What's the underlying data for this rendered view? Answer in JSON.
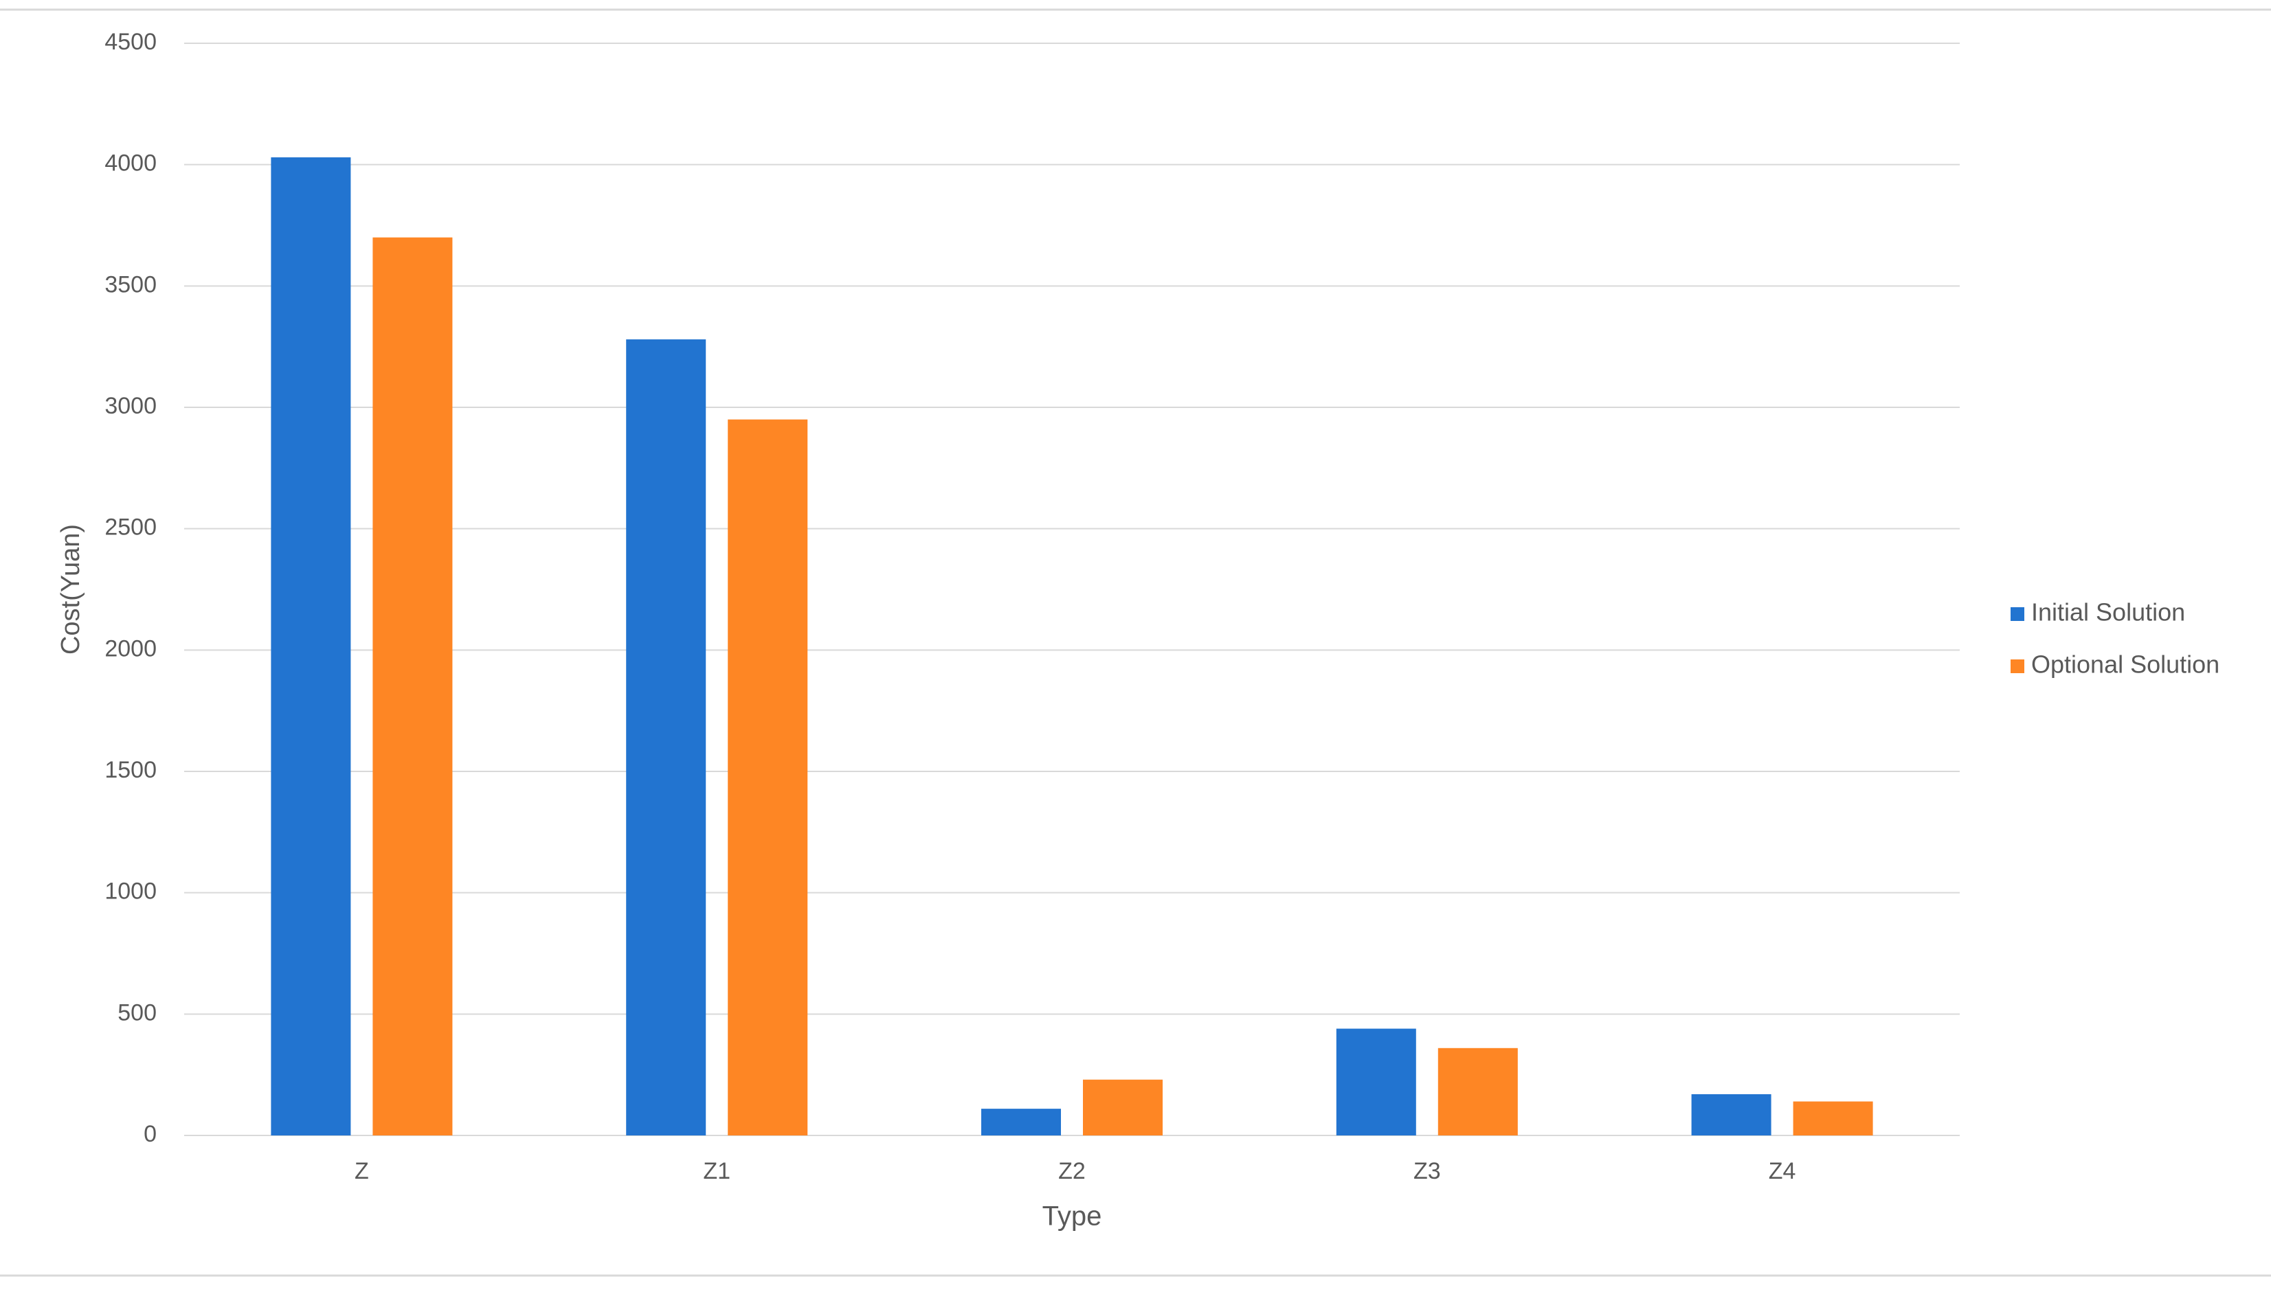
{
  "chart_data": {
    "type": "bar",
    "categories": [
      "Z",
      "Z1",
      "Z2",
      "Z3",
      "Z4"
    ],
    "series": [
      {
        "name": "Initial Solution",
        "color": "#2274d0",
        "values": [
          4030,
          3280,
          110,
          440,
          170
        ]
      },
      {
        "name": "Optional Solution",
        "color": "#fe8624",
        "values": [
          3700,
          2950,
          230,
          360,
          140
        ]
      }
    ],
    "x_label": "Type",
    "y_label": "Cost(Yuan)",
    "ylim": [
      0,
      4500
    ],
    "yticks": [
      0,
      500,
      1000,
      1500,
      2000,
      2500,
      3000,
      3500,
      4000,
      4500
    ],
    "grid": true,
    "legend": "right"
  }
}
